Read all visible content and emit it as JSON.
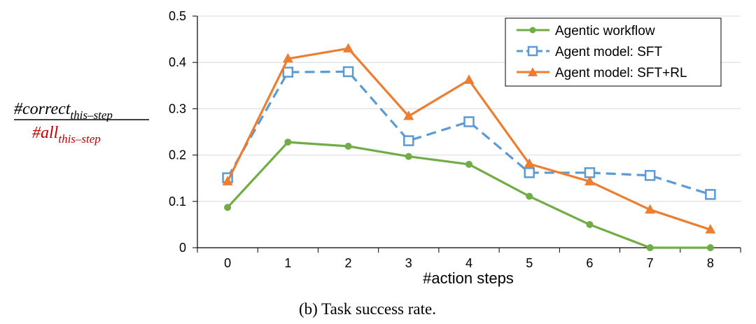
{
  "caption": "(b) Task success rate.",
  "ylabel": {
    "numerator": {
      "prefix": "#correct",
      "subscript": "this–step"
    },
    "denominator": {
      "prefix": "#all",
      "subscript": "this–step"
    }
  },
  "colors": {
    "workflow": "#70ad47",
    "sft": "#5b9bd5",
    "sftrl": "#ed7d31",
    "denominator_text": "#c00000",
    "axis": "#000000",
    "grid": "#d9d9d9"
  },
  "chart_data": {
    "type": "line",
    "xlabel": "#action steps",
    "ylabel": "#correct_this-step / #all_this-step",
    "x": [
      0,
      1,
      2,
      3,
      4,
      5,
      6,
      7,
      8
    ],
    "x_tick_labels": [
      "0",
      "1",
      "2",
      "3",
      "4",
      "5",
      "6",
      "7",
      "8"
    ],
    "ylim": [
      0,
      0.5
    ],
    "y_ticks": [
      0,
      0.1,
      0.2,
      0.3,
      0.4,
      0.5
    ],
    "y_tick_labels": [
      "0",
      "0.1",
      "0.2",
      "0.3",
      "0.4",
      "0.5"
    ],
    "grid": "horizontal",
    "legend_position": "top-right",
    "series": [
      {
        "name": "Agentic workflow",
        "key": "workflow",
        "marker": "circle",
        "line_style": "solid",
        "values": [
          0.087,
          0.228,
          0.219,
          0.197,
          0.18,
          0.111,
          0.05,
          0.0,
          0.0
        ]
      },
      {
        "name": "Agent model: SFT",
        "key": "sft",
        "marker": "square-open",
        "line_style": "dashed",
        "values": [
          0.151,
          0.379,
          0.38,
          0.231,
          0.272,
          0.162,
          0.162,
          0.156,
          0.115
        ]
      },
      {
        "name": "Agent model: SFT+RL",
        "key": "sftrl",
        "marker": "triangle",
        "line_style": "solid",
        "values": [
          0.143,
          0.408,
          0.43,
          0.284,
          0.362,
          0.181,
          0.143,
          0.082,
          0.039
        ]
      }
    ]
  }
}
